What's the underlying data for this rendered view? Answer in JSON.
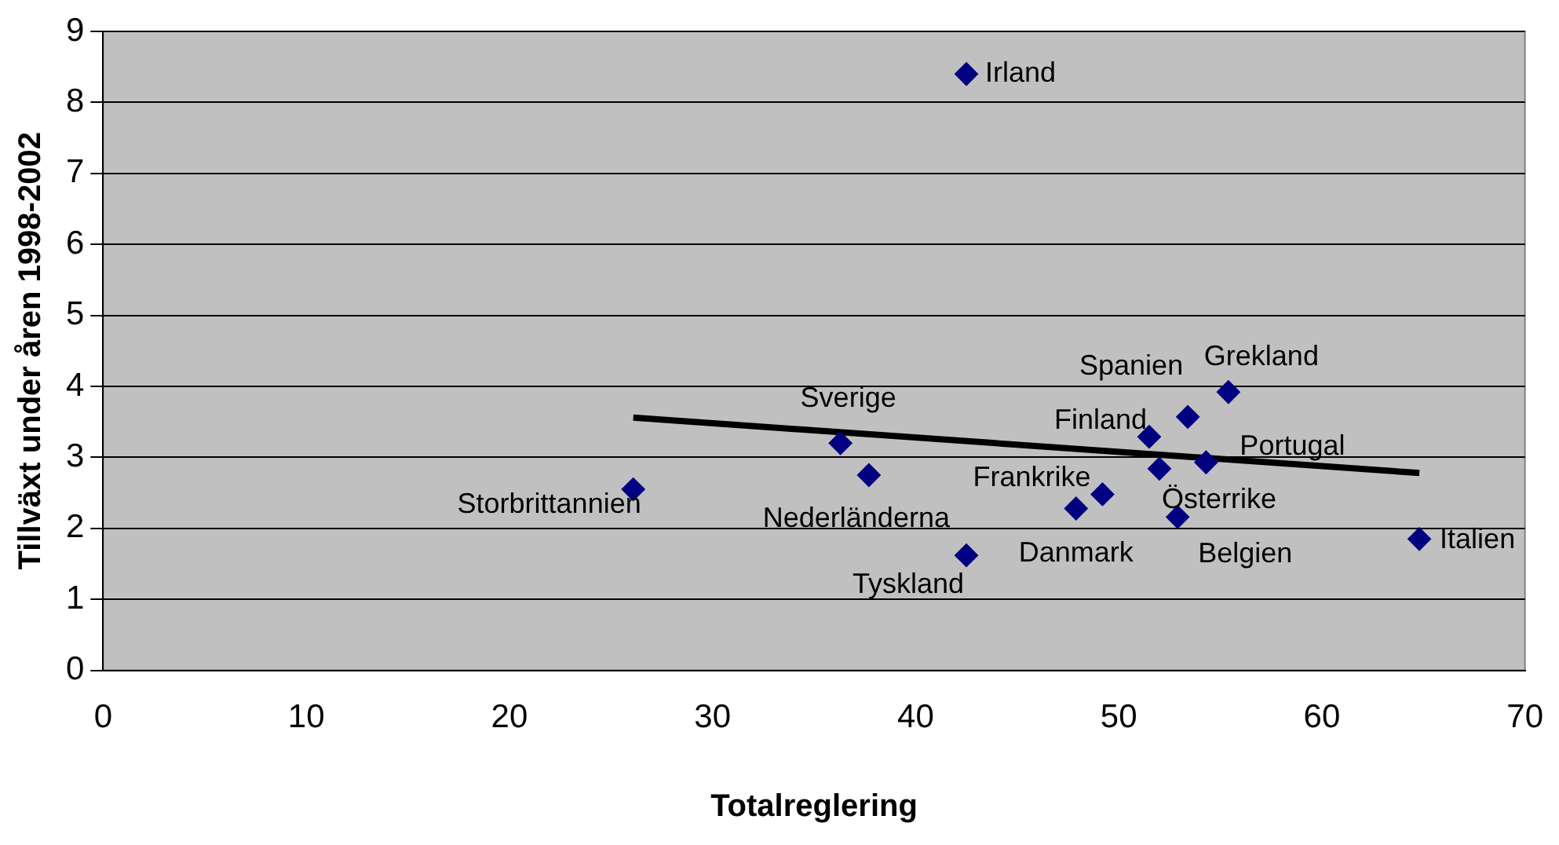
{
  "chart_data": {
    "type": "scatter",
    "xlabel": "Totalreglering",
    "ylabel": "Tillväxt under åren 1998-2002",
    "xlim": [
      0,
      70
    ],
    "xticks": [
      0,
      10,
      20,
      30,
      40,
      50,
      60,
      70
    ],
    "ylim": [
      0,
      9
    ],
    "yticks": [
      0,
      1,
      2,
      3,
      4,
      5,
      6,
      7,
      8,
      9
    ],
    "grid": "y",
    "legend": false,
    "series": [
      {
        "color": "#000080",
        "marker": "diamond",
        "x": [
          42.5,
          26.1,
          36.3,
          37.7,
          42.5,
          49.2,
          47.9,
          51.5,
          53.4,
          55.4,
          52.0,
          54.3,
          52.9,
          64.8
        ],
        "values": [
          8.4,
          2.55,
          3.2,
          2.75,
          1.62,
          2.48,
          2.28,
          3.29,
          3.57,
          3.92,
          2.84,
          2.93,
          2.16,
          1.85
        ]
      },
      {
        "type": "line",
        "marker": "none",
        "color": "#000000",
        "x": [
          26.1,
          64.8
        ],
        "values": [
          3.56,
          2.78
        ]
      }
    ],
    "annotations": [
      {
        "text": "Irland",
        "x": 42.5,
        "y": 8.4
      },
      {
        "text": "Storbrittannien",
        "x": 26.1,
        "y": 2.55
      },
      {
        "text": "Sverige",
        "x": 36.3,
        "y": 3.2
      },
      {
        "text": "Nederländerna",
        "x": 37.7,
        "y": 2.75
      },
      {
        "text": "Tyskland",
        "x": 42.5,
        "y": 1.62
      },
      {
        "text": "Frankrike",
        "x": 49.2,
        "y": 2.48
      },
      {
        "text": "Danmark",
        "x": 47.9,
        "y": 2.28
      },
      {
        "text": "Finland",
        "x": 51.5,
        "y": 3.29
      },
      {
        "text": "Spanien",
        "x": 53.4,
        "y": 3.57
      },
      {
        "text": "Grekland",
        "x": 55.4,
        "y": 3.92
      },
      {
        "text": "Österrike",
        "x": 52.0,
        "y": 2.84
      },
      {
        "text": "Portugal",
        "x": 54.3,
        "y": 2.93
      },
      {
        "text": "Belgien",
        "x": 52.9,
        "y": 2.16
      },
      {
        "text": "Italien",
        "x": 64.8,
        "y": 1.85
      }
    ]
  }
}
